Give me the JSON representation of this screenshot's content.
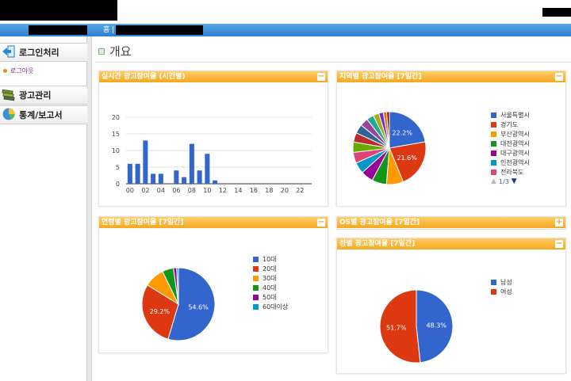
{
  "header": {
    "nav_home": "홈 |"
  },
  "sidebar": {
    "sections": [
      {
        "label": "로그인처리",
        "icon": "login-arrow-icon"
      },
      {
        "label": "광고관리",
        "icon": "ad-stack-icon"
      },
      {
        "label": "통계/보고서",
        "icon": "globe-chart-icon"
      }
    ],
    "logout_label": "로그아웃"
  },
  "main": {
    "title": "개요"
  },
  "panels": {
    "hourly": {
      "title": "실시간 광고참여율 (시간별)",
      "toggle": "−"
    },
    "region": {
      "title": "지역별 광고참여율 [7일간]",
      "toggle": "−",
      "pager": "1/3"
    },
    "age": {
      "title": "연령별 광고참여율 [7일간]",
      "toggle": "−"
    },
    "os": {
      "title": "OS별 광고참여율 [7일간]",
      "toggle": "+"
    },
    "gender": {
      "title": "성별 광고참여율 [7일간]",
      "toggle": "−"
    }
  },
  "colors": {
    "accent_header": "#f4a820",
    "nav_blue": "#2f7fd1"
  },
  "chart_data": [
    {
      "type": "bar",
      "title": "실시간 광고참여율 (시간별)",
      "x": [
        0,
        1,
        2,
        3,
        4,
        5,
        6,
        7,
        8,
        9,
        10,
        11,
        12,
        13,
        14,
        15,
        16,
        17,
        18,
        19,
        20,
        21,
        22,
        23
      ],
      "values": [
        6,
        6,
        13,
        3,
        3,
        0,
        4,
        2,
        12,
        4,
        9,
        1,
        0,
        0,
        0,
        0,
        0,
        0,
        0,
        0,
        0,
        0,
        0,
        0
      ],
      "xtick_labels": [
        "00",
        "02",
        "04",
        "06",
        "08",
        "10",
        "12",
        "14",
        "16",
        "18",
        "20",
        "22"
      ],
      "yticks": [
        0,
        5,
        10,
        15,
        20
      ],
      "ylim": [
        0,
        20
      ],
      "color": "#3366cc"
    },
    {
      "type": "pie",
      "title": "지역별 광고참여율 [7일간]",
      "legend": [
        "서울특별시",
        "경기도",
        "부산광역시",
        "대전광역시",
        "대구광역시",
        "인천광역시",
        "전라북도"
      ],
      "slices": [
        {
          "label": "서울특별시",
          "value": 22.2,
          "color": "#3366cc",
          "show_label": "22.2%"
        },
        {
          "label": "경기도",
          "value": 21.6,
          "color": "#dc3912",
          "show_label": "21.6%"
        },
        {
          "label": "부산광역시",
          "value": 7.5,
          "color": "#ff9900"
        },
        {
          "label": "대전광역시",
          "value": 6.5,
          "color": "#109618"
        },
        {
          "label": "대구광역시",
          "value": 5.5,
          "color": "#990099"
        },
        {
          "label": "인천광역시",
          "value": 5.0,
          "color": "#0099c6"
        },
        {
          "label": "전라북도",
          "value": 4.8,
          "color": "#dd4477"
        },
        {
          "label": "",
          "value": 4.6,
          "color": "#66aa00"
        },
        {
          "label": "",
          "value": 4.2,
          "color": "#b82e2e"
        },
        {
          "label": "",
          "value": 4.0,
          "color": "#316395"
        },
        {
          "label": "",
          "value": 3.6,
          "color": "#994499"
        },
        {
          "label": "",
          "value": 3.2,
          "color": "#22aa99"
        },
        {
          "label": "",
          "value": 2.6,
          "color": "#aaaa11"
        },
        {
          "label": "",
          "value": 2.0,
          "color": "#6633cc"
        },
        {
          "label": "",
          "value": 1.5,
          "color": "#e67300"
        },
        {
          "label": "",
          "value": 1.2,
          "color": "#8b0707"
        }
      ]
    },
    {
      "type": "pie",
      "title": "연령별 광고참여율 [7일간]",
      "slices": [
        {
          "label": "10대",
          "value": 54.6,
          "color": "#3366cc",
          "show_label": "54.6%"
        },
        {
          "label": "20대",
          "value": 29.2,
          "color": "#dc3912",
          "show_label": "29.2%"
        },
        {
          "label": "30대",
          "value": 9.0,
          "color": "#ff9900"
        },
        {
          "label": "40대",
          "value": 5.0,
          "color": "#109618"
        },
        {
          "label": "50대",
          "value": 1.4,
          "color": "#990099"
        },
        {
          "label": "60대이상",
          "value": 0.8,
          "color": "#0099c6"
        }
      ]
    },
    {
      "type": "pie",
      "title": "성별 광고참여율 [7일간]",
      "slices": [
        {
          "label": "남성",
          "value": 48.3,
          "color": "#3366cc",
          "show_label": "48.3%"
        },
        {
          "label": "여성",
          "value": 51.7,
          "color": "#dc3912",
          "show_label": "51.7%"
        }
      ]
    }
  ]
}
